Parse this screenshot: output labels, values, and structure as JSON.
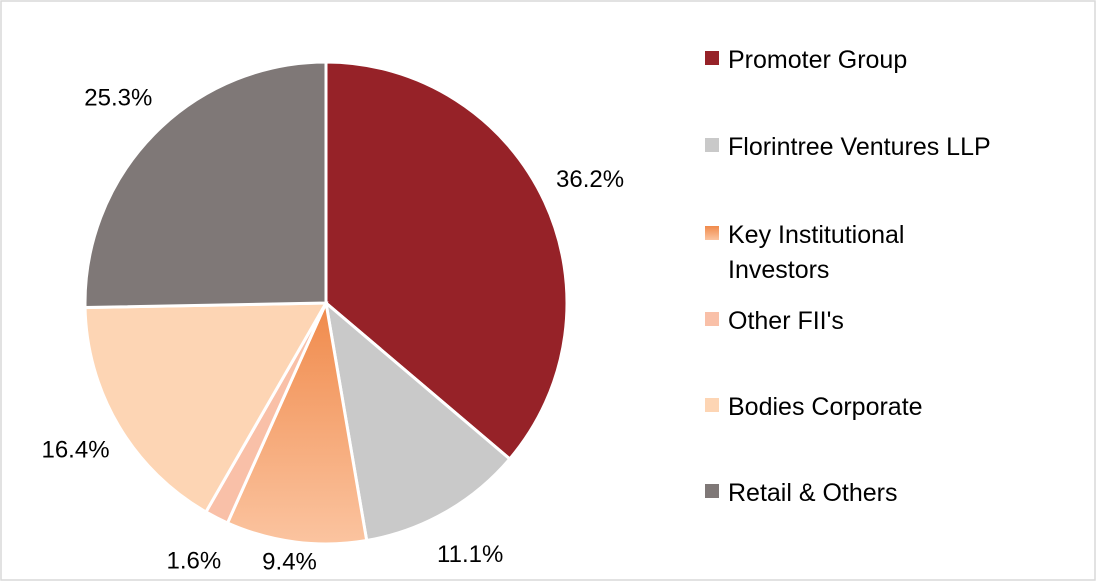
{
  "chart_data": {
    "type": "pie",
    "categories": [
      "Promoter Group",
      "Florintree Ventures LLP",
      "Key Institutional Investors",
      "Other FII's",
      "Bodies Corporate",
      "Retail & Others"
    ],
    "values": [
      36.2,
      11.1,
      9.4,
      1.6,
      16.4,
      25.3
    ],
    "value_labels": [
      "36.2%",
      "11.1%",
      "9.4%",
      "1.6%",
      "16.4%",
      "25.3%"
    ],
    "colors": [
      "#962228",
      "#c9c9c9",
      "#f2965c",
      "#f9c0a8",
      "#fdd5b4",
      "#7f7877"
    ],
    "legend": "right"
  }
}
